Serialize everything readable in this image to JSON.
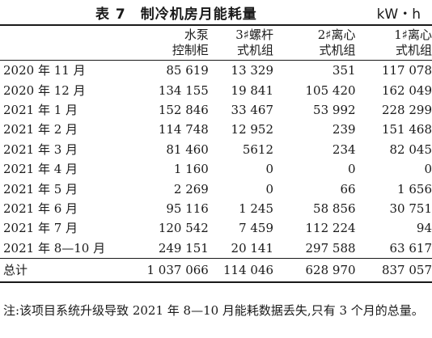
{
  "table": {
    "number_label": "表 7",
    "title": "制冷机房月能耗量",
    "unit": "kW・h",
    "columns": [
      {
        "line1": "水泵",
        "line2": "控制柜"
      },
      {
        "line1": "3♯螺杆",
        "line2": "式机组"
      },
      {
        "line1": "2♯离心",
        "line2": "式机组"
      },
      {
        "line1": "1♯离心",
        "line2": "式机组"
      }
    ],
    "rows": [
      {
        "month": "2020 年 11 月",
        "values": [
          "85 619",
          "13 329",
          "351",
          "117 078"
        ]
      },
      {
        "month": "2020 年 12 月",
        "values": [
          "134 155",
          "19 841",
          "105 420",
          "162 049"
        ]
      },
      {
        "month": "2021 年 1 月",
        "values": [
          "152 846",
          "33 467",
          "53 992",
          "228 299"
        ]
      },
      {
        "month": "2021 年 2 月",
        "values": [
          "114 748",
          "12 952",
          "239",
          "151 468"
        ]
      },
      {
        "month": "2021 年 3 月",
        "values": [
          "81 460",
          "5612",
          "234",
          "82 045"
        ]
      },
      {
        "month": "2021 年 4 月",
        "values": [
          "1 160",
          "0",
          "0",
          "0"
        ]
      },
      {
        "month": "2021 年 5 月",
        "values": [
          "2 269",
          "0",
          "66",
          "1 656"
        ]
      },
      {
        "month": "2021 年 6 月",
        "values": [
          "95 116",
          "1 245",
          "58 856",
          "30 751"
        ]
      },
      {
        "month": "2021 年 7 月",
        "values": [
          "120 542",
          "7 459",
          "112 224",
          "94"
        ]
      },
      {
        "month": "2021 年 8—10 月",
        "values": [
          "249 151",
          "20 141",
          "297 588",
          "63 617"
        ]
      }
    ],
    "total": {
      "label": "总计",
      "values": [
        "1 037 066",
        "114 046",
        "628 970",
        "837 057"
      ]
    },
    "note": "注:该项目系统升级导致 2021 年 8—10 月能耗数据丢失,只有 3 个月的总量。"
  }
}
